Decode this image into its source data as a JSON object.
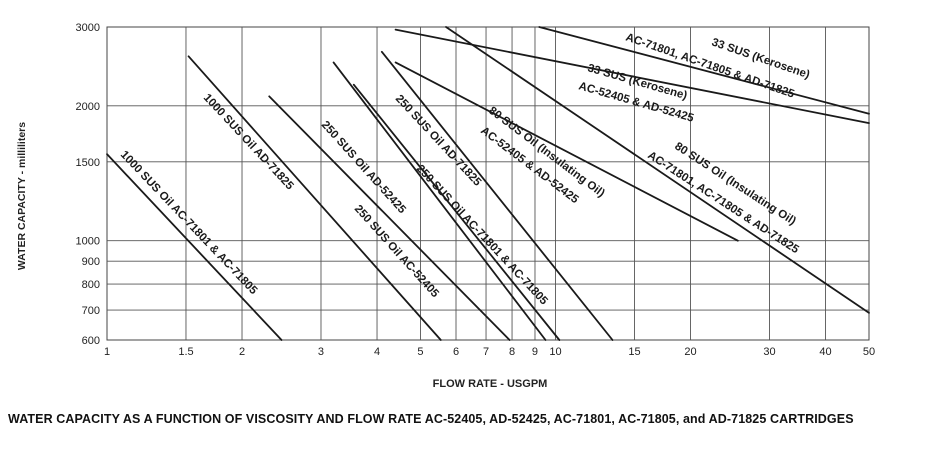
{
  "chart_data": {
    "type": "line",
    "title": "",
    "xlabel": "FLOW RATE - USGPM",
    "ylabel": "WATER CAPACITY - milliliters",
    "x_scale": "log",
    "y_scale": "log",
    "xlim": [
      1,
      50
    ],
    "ylim": [
      600,
      3000
    ],
    "grid": true,
    "x_ticks": [
      1,
      1.5,
      2,
      3,
      4,
      5,
      6,
      7,
      8,
      9,
      10,
      15,
      20,
      30,
      40,
      50
    ],
    "x_tick_labels": [
      "1",
      "1.5",
      "2",
      "3",
      "4",
      "5",
      "6",
      "7",
      "8",
      "9",
      "10",
      "15",
      "20",
      "30",
      "40",
      "50"
    ],
    "y_ticks": [
      600,
      700,
      800,
      900,
      1000,
      1500,
      2000,
      3000
    ],
    "y_tick_labels": [
      "600",
      "700",
      "800",
      "900",
      "1000",
      "1500",
      "2000",
      "3000"
    ],
    "series": [
      {
        "name": "1000 SUS Oil AC-71801 & AC-71805",
        "x": [
          1.0,
          2.45
        ],
        "y": [
          1560,
          600
        ]
      },
      {
        "name": "1000 SUS Oil AD-71825",
        "x": [
          1.52,
          5.55
        ],
        "y": [
          2580,
          600
        ]
      },
      {
        "name": "250 SUS Oil AC-52405",
        "x": [
          2.3,
          7.9
        ],
        "y": [
          2100,
          600
        ]
      },
      {
        "name": "250 SUS Oil AD-52425",
        "x": [
          3.2,
          9.5
        ],
        "y": [
          2500,
          600
        ]
      },
      {
        "name": "250 SUS Oil AC-71801 & AC-71805",
        "x": [
          3.55,
          10.2
        ],
        "y": [
          2230,
          600
        ]
      },
      {
        "name": "250 SUS Oil AD-71825",
        "x": [
          4.1,
          13.4
        ],
        "y": [
          2640,
          600
        ]
      },
      {
        "name": "80 SUS Oil (Insulating Oil) AC-52405 & AD-52425",
        "x": [
          4.4,
          25.5
        ],
        "y": [
          2500,
          1000
        ]
      },
      {
        "name": "80 SUS Oil (Insulating Oil) AC-71801, AC-71805 & AD-71825",
        "x": [
          5.7,
          50
        ],
        "y": [
          3000,
          690
        ]
      },
      {
        "name": "33 SUS (Kerosene) AC-52405 & AD-52425",
        "x": [
          4.4,
          50
        ],
        "y": [
          2960,
          1830
        ]
      },
      {
        "name": "33 SUS (Kerosene) AC-71801, AC-71805 & AD-71825",
        "x": [
          9.2,
          50
        ],
        "y": [
          3000,
          1920
        ]
      }
    ],
    "annotations": [
      "1000 SUS Oil AC-71801 & AC-71805",
      "1000 SUS Oil AD-71825",
      "250 SUS Oil AC-52405",
      "250 SUS Oil AD-52425",
      "250 SUS Oil AC-71801 & AC-71805",
      "250 SUS Oil AD-71825",
      "80 SUS Oil (Insulating Oil)",
      "AC-52405 & AD-52425",
      "80 SUS Oil (Insulating Oil)",
      "AC-71801, AC-71805 & AD-71825",
      "33 SUS (Kerosene)",
      "AC-52405 & AD-52425",
      "33 SUS (Kerosene)",
      "AC-71801, AC-71805 & AD-71825"
    ]
  },
  "caption": "WATER CAPACITY AS A FUNCTION OF VISCOSITY AND FLOW RATE AC-52405, AD-52425, AC-71801, AC-71805, and AD-71825 CARTRIDGES"
}
